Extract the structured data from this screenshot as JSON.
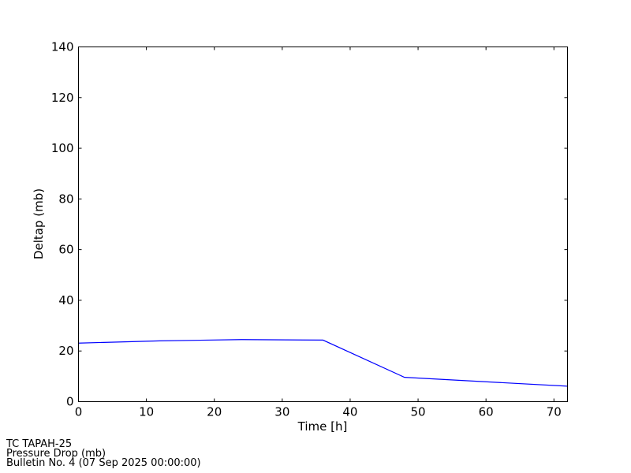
{
  "chart_data": {
    "type": "line",
    "title": "",
    "xlabel": "Time [h]",
    "ylabel": "Deltap (mb)",
    "xlim": [
      0,
      72
    ],
    "ylim": [
      0,
      140
    ],
    "xticks": [
      0,
      10,
      20,
      30,
      40,
      50,
      60,
      70
    ],
    "yticks": [
      0,
      20,
      40,
      60,
      80,
      100,
      120,
      140
    ],
    "grid": false,
    "series": [
      {
        "color": "#0000ff",
        "x": [
          0,
          12,
          24,
          36,
          48,
          72
        ],
        "y": [
          23.1,
          24.0,
          24.5,
          24.3,
          9.6,
          6.1
        ]
      }
    ]
  },
  "footer": {
    "line1": "TC TAPAH-25",
    "line2": "Pressure Drop (mb)",
    "line3": "Bulletin No. 4 (07 Sep 2025  00:00:00)"
  }
}
